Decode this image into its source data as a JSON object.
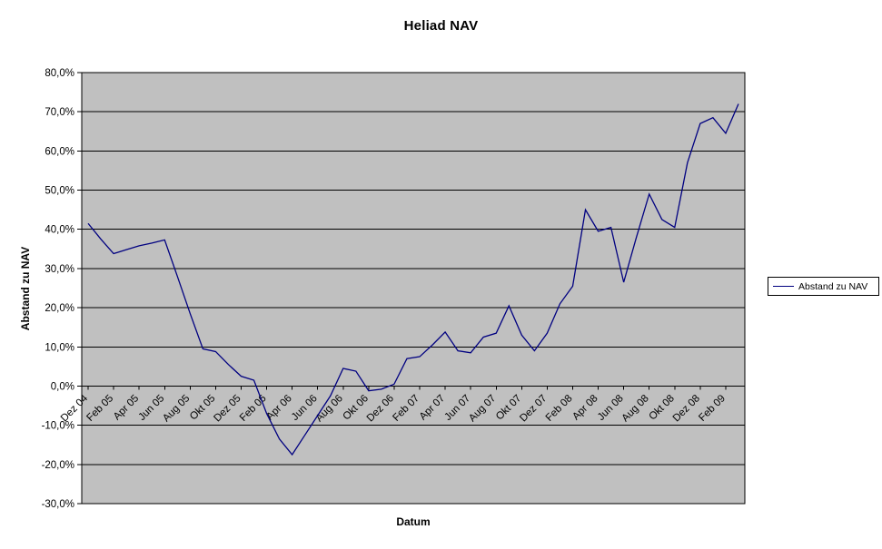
{
  "chart_data": {
    "type": "line",
    "title": "Heliad NAV",
    "xlabel": "Datum",
    "ylabel": "Abstand zu NAV",
    "ylim": [
      -30,
      80
    ],
    "y_tick_step": 10,
    "y_tick_labels": [
      "80,0%",
      "70,0%",
      "60,0%",
      "50,0%",
      "40,0%",
      "30,0%",
      "20,0%",
      "10,0%",
      "0,0%",
      "-10,0%",
      "-20,0%",
      "-30,0%"
    ],
    "x_tick_every": 2,
    "x_tick_rotation": -45,
    "x_tick_labels": [
      "Dez 04",
      "Feb 05",
      "Apr 05",
      "Jun 05",
      "Aug 05",
      "Okt 05",
      "Dez 05",
      "Feb 06",
      "Apr 06",
      "Jun 06",
      "Aug 06",
      "Okt 06",
      "Dez 06",
      "Feb 07",
      "Apr 07",
      "Jun 07",
      "Aug 07",
      "Okt 07",
      "Dez 07",
      "Feb 08",
      "Apr 08",
      "Jun 08",
      "Aug 08",
      "Okt 08",
      "Dez 08",
      "Feb 09"
    ],
    "categories": [
      "Dez 04",
      "Jan 05",
      "Feb 05",
      "Mrz 05",
      "Apr 05",
      "Mai 05",
      "Jun 05",
      "Jul 05",
      "Aug 05",
      "Sep 05",
      "Okt 05",
      "Nov 05",
      "Dez 05",
      "Jan 06",
      "Feb 06",
      "Mrz 06",
      "Apr 06",
      "Mai 06",
      "Jun 06",
      "Jul 06",
      "Aug 06",
      "Sep 06",
      "Okt 06",
      "Nov 06",
      "Dez 06",
      "Jan 07",
      "Feb 07",
      "Mrz 07",
      "Apr 07",
      "Mai 07",
      "Jun 07",
      "Jul 07",
      "Aug 07",
      "Sep 07",
      "Okt 07",
      "Nov 07",
      "Dez 07",
      "Jan 08",
      "Feb 08",
      "Mrz 08",
      "Apr 08",
      "Mai 08",
      "Jun 08",
      "Jul 08",
      "Aug 08",
      "Sep 08",
      "Okt 08",
      "Nov 08",
      "Dez 08",
      "Jan 09",
      "Feb 09",
      "Mrz 09"
    ],
    "series": [
      {
        "name": "Abstand zu NAV",
        "color": "#000080",
        "values": [
          41.5,
          37.5,
          33.8,
          34.8,
          35.8,
          36.5,
          37.3,
          28.0,
          18.5,
          9.5,
          8.8,
          5.5,
          2.5,
          1.5,
          -7.0,
          -13.5,
          -17.5,
          -12.5,
          -7.5,
          -2.5,
          4.5,
          3.8,
          -1.2,
          -0.8,
          0.5,
          7.0,
          7.5,
          10.5,
          13.8,
          9.0,
          8.5,
          12.5,
          13.5,
          20.5,
          13.0,
          9.0,
          13.5,
          21.0,
          25.5,
          45.0,
          39.5,
          40.5,
          26.5,
          38.0,
          49.0,
          42.5,
          40.5,
          57.0,
          67.0,
          68.5,
          64.5,
          72.0
        ]
      }
    ],
    "grid": true,
    "legend_position": "right",
    "plot_bg_color": "#C0C0C0",
    "page_bg_color": "#FFFFFF",
    "gridline_color": "#000000",
    "axis_color": "#000000"
  }
}
